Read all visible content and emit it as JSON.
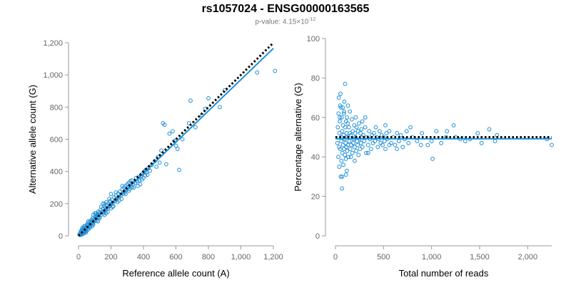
{
  "header": {
    "title": "rs1057024 - ENSG00000163565",
    "pvalue_prefix": "p-value: 4.15×10",
    "pvalue_exp": "-12"
  },
  "colors": {
    "points": "#1f8fd8",
    "fit": "#1f8fd8",
    "reference": "#000000",
    "axis": "#999999"
  },
  "chart_data": [
    {
      "type": "scatter",
      "title": "",
      "xlabel": "Reference allele count (A)",
      "ylabel": "Alternative allele count (G)",
      "xlim": [
        0,
        1200
      ],
      "ylim": [
        0,
        1200
      ],
      "xticks": [
        0,
        200,
        400,
        600,
        800,
        1000,
        1200
      ],
      "xtick_labels": [
        "0",
        "200",
        "400",
        "600",
        "800",
        "1,000",
        "1,200"
      ],
      "yticks": [
        0,
        200,
        400,
        600,
        800,
        1000,
        1200
      ],
      "ytick_labels": [
        "0",
        "200",
        "400",
        "600",
        "800",
        "1,000",
        "1,200"
      ],
      "grid": false,
      "reference_line": {
        "style": "dotted",
        "from": [
          0,
          0
        ],
        "to": [
          1200,
          1200
        ]
      },
      "fit_line": {
        "style": "solid",
        "from": [
          0,
          0
        ],
        "to": [
          1200,
          1165
        ]
      },
      "points": [
        [
          5,
          10
        ],
        [
          10,
          5
        ],
        [
          12,
          20
        ],
        [
          15,
          30
        ],
        [
          18,
          8
        ],
        [
          20,
          15
        ],
        [
          22,
          40
        ],
        [
          25,
          25
        ],
        [
          28,
          12
        ],
        [
          30,
          35
        ],
        [
          32,
          50
        ],
        [
          35,
          20
        ],
        [
          38,
          28
        ],
        [
          40,
          45
        ],
        [
          42,
          60
        ],
        [
          45,
          38
        ],
        [
          48,
          55
        ],
        [
          50,
          30
        ],
        [
          52,
          70
        ],
        [
          55,
          48
        ],
        [
          58,
          62
        ],
        [
          60,
          40
        ],
        [
          62,
          80
        ],
        [
          65,
          55
        ],
        [
          68,
          72
        ],
        [
          70,
          90
        ],
        [
          72,
          60
        ],
        [
          75,
          68
        ],
        [
          78,
          85
        ],
        [
          80,
          100
        ],
        [
          82,
          75
        ],
        [
          85,
          95
        ],
        [
          88,
          110
        ],
        [
          90,
          80
        ],
        [
          92,
          130
        ],
        [
          95,
          88
        ],
        [
          98,
          105
        ],
        [
          100,
          92
        ],
        [
          102,
          120
        ],
        [
          105,
          100
        ],
        [
          108,
          140
        ],
        [
          110,
          115
        ],
        [
          112,
          95
        ],
        [
          115,
          125
        ],
        [
          118,
          135
        ],
        [
          120,
          110
        ],
        [
          122,
          150
        ],
        [
          125,
          128
        ],
        [
          128,
          118
        ],
        [
          130,
          145
        ],
        [
          135,
          160
        ],
        [
          140,
          132
        ],
        [
          145,
          150
        ],
        [
          150,
          170
        ],
        [
          155,
          140
        ],
        [
          158,
          185
        ],
        [
          160,
          155
        ],
        [
          165,
          175
        ],
        [
          170,
          160
        ],
        [
          172,
          210
        ],
        [
          175,
          190
        ],
        [
          180,
          170
        ],
        [
          185,
          200
        ],
        [
          190,
          182
        ],
        [
          195,
          215
        ],
        [
          200,
          195
        ],
        [
          205,
          225
        ],
        [
          210,
          205
        ],
        [
          215,
          185
        ],
        [
          220,
          240
        ],
        [
          225,
          215
        ],
        [
          230,
          250
        ],
        [
          235,
          228
        ],
        [
          240,
          210
        ],
        [
          245,
          262
        ],
        [
          250,
          240
        ],
        [
          255,
          275
        ],
        [
          260,
          250
        ],
        [
          265,
          230
        ],
        [
          270,
          290
        ],
        [
          275,
          262
        ],
        [
          280,
          300
        ],
        [
          285,
          270
        ],
        [
          290,
          310
        ],
        [
          295,
          285
        ],
        [
          300,
          320
        ],
        [
          305,
          300
        ],
        [
          310,
          330
        ],
        [
          315,
          290
        ],
        [
          320,
          340
        ],
        [
          325,
          310
        ],
        [
          330,
          345
        ],
        [
          335,
          320
        ],
        [
          340,
          300
        ],
        [
          350,
          330
        ],
        [
          355,
          360
        ],
        [
          360,
          340
        ],
        [
          365,
          310
        ],
        [
          370,
          365
        ],
        [
          375,
          345
        ],
        [
          380,
          320
        ],
        [
          385,
          370
        ],
        [
          390,
          350
        ],
        [
          395,
          385
        ],
        [
          400,
          360
        ],
        [
          405,
          400
        ],
        [
          410,
          375
        ],
        [
          415,
          410
        ],
        [
          420,
          395
        ],
        [
          425,
          380
        ],
        [
          430,
          420
        ],
        [
          440,
          405
        ],
        [
          450,
          440
        ],
        [
          470,
          465
        ],
        [
          480,
          430
        ],
        [
          490,
          490
        ],
        [
          500,
          455
        ],
        [
          510,
          530
        ],
        [
          520,
          700
        ],
        [
          530,
          690
        ],
        [
          540,
          445
        ],
        [
          560,
          635
        ],
        [
          580,
          650
        ],
        [
          590,
          590
        ],
        [
          600,
          560
        ],
        [
          610,
          540
        ],
        [
          620,
          410
        ],
        [
          640,
          600
        ],
        [
          680,
          700
        ],
        [
          690,
          840
        ],
        [
          720,
          675
        ],
        [
          760,
          750
        ],
        [
          780,
          790
        ],
        [
          800,
          855
        ],
        [
          870,
          800
        ],
        [
          900,
          905
        ],
        [
          1100,
          1015
        ],
        [
          1210,
          1025
        ],
        [
          150,
          200
        ],
        [
          170,
          140
        ],
        [
          190,
          230
        ],
        [
          210,
          180
        ],
        [
          230,
          270
        ],
        [
          250,
          220
        ],
        [
          270,
          310
        ],
        [
          290,
          260
        ],
        [
          310,
          280
        ],
        [
          330,
          300
        ],
        [
          200,
          170
        ],
        [
          160,
          130
        ],
        [
          130,
          110
        ],
        [
          110,
          130
        ],
        [
          90,
          70
        ],
        [
          70,
          50
        ],
        [
          55,
          70
        ],
        [
          40,
          25
        ],
        [
          30,
          15
        ],
        [
          20,
          35
        ],
        [
          15,
          10
        ],
        [
          25,
          50
        ],
        [
          35,
          60
        ],
        [
          45,
          20
        ],
        [
          60,
          90
        ],
        [
          85,
          60
        ],
        [
          100,
          140
        ],
        [
          120,
          90
        ],
        [
          140,
          180
        ],
        [
          160,
          200
        ],
        [
          180,
          150
        ],
        [
          200,
          260
        ]
      ]
    },
    {
      "type": "scatter",
      "title": "",
      "xlabel": "Total number of reads",
      "ylabel": "Percentage alternative (G)",
      "xlim": [
        0,
        2250
      ],
      "ylim": [
        0,
        100
      ],
      "xticks": [
        0,
        500,
        1000,
        1500,
        2000
      ],
      "xtick_labels": [
        "0",
        "500",
        "1,000",
        "1,500",
        "2,000"
      ],
      "yticks": [
        0,
        20,
        40,
        60,
        80,
        100
      ],
      "ytick_labels": [
        "0",
        "20",
        "40",
        "60",
        "80",
        "100"
      ],
      "grid": false,
      "reference_line": {
        "style": "dotted",
        "from": [
          0,
          50
        ],
        "to": [
          2250,
          50
        ]
      },
      "fit_line": {
        "style": "solid",
        "from": [
          0,
          49.2
        ],
        "to": [
          2250,
          49.2
        ]
      },
      "points": [
        [
          20,
          47
        ],
        [
          25,
          55
        ],
        [
          30,
          40
        ],
        [
          32,
          62
        ],
        [
          35,
          70
        ],
        [
          38,
          45
        ],
        [
          40,
          35
        ],
        [
          42,
          52
        ],
        [
          45,
          58
        ],
        [
          48,
          66
        ],
        [
          50,
          44
        ],
        [
          52,
          72
        ],
        [
          55,
          30
        ],
        [
          58,
          50
        ],
        [
          60,
          48
        ],
        [
          62,
          38
        ],
        [
          65,
          60
        ],
        [
          68,
          24
        ],
        [
          70,
          53
        ],
        [
          72,
          42
        ],
        [
          75,
          65
        ],
        [
          78,
          56
        ],
        [
          80,
          46
        ],
        [
          82,
          36
        ],
        [
          85,
          51
        ],
        [
          88,
          62
        ],
        [
          90,
          44
        ],
        [
          92,
          68
        ],
        [
          95,
          49
        ],
        [
          98,
          41
        ],
        [
          100,
          77
        ],
        [
          102,
          55
        ],
        [
          105,
          47
        ],
        [
          108,
          39
        ],
        [
          110,
          58
        ],
        [
          112,
          45
        ],
        [
          115,
          52
        ],
        [
          118,
          33
        ],
        [
          120,
          60
        ],
        [
          122,
          43
        ],
        [
          125,
          50
        ],
        [
          128,
          57
        ],
        [
          130,
          46
        ],
        [
          135,
          40
        ],
        [
          140,
          55
        ],
        [
          145,
          48
        ],
        [
          150,
          52
        ],
        [
          155,
          44
        ],
        [
          160,
          51
        ],
        [
          165,
          46
        ],
        [
          170,
          59
        ],
        [
          175,
          42
        ],
        [
          180,
          53
        ],
        [
          185,
          47
        ],
        [
          190,
          49
        ],
        [
          195,
          56
        ],
        [
          200,
          45
        ],
        [
          205,
          52
        ],
        [
          210,
          50
        ],
        [
          215,
          43
        ],
        [
          220,
          55
        ],
        [
          225,
          48
        ],
        [
          230,
          46
        ],
        [
          235,
          53
        ],
        [
          240,
          41
        ],
        [
          245,
          57
        ],
        [
          250,
          49
        ],
        [
          255,
          44
        ],
        [
          260,
          52
        ],
        [
          265,
          47
        ],
        [
          270,
          54
        ],
        [
          275,
          50
        ],
        [
          280,
          45
        ],
        [
          290,
          51
        ],
        [
          300,
          48
        ],
        [
          310,
          55
        ],
        [
          320,
          42
        ],
        [
          330,
          50
        ],
        [
          340,
          46
        ],
        [
          350,
          53
        ],
        [
          360,
          49
        ],
        [
          370,
          44
        ],
        [
          380,
          51
        ],
        [
          390,
          47
        ],
        [
          400,
          52
        ],
        [
          410,
          48
        ],
        [
          420,
          55
        ],
        [
          430,
          50
        ],
        [
          440,
          45
        ],
        [
          450,
          49
        ],
        [
          460,
          53
        ],
        [
          470,
          47
        ],
        [
          480,
          51
        ],
        [
          490,
          46
        ],
        [
          500,
          50
        ],
        [
          510,
          48
        ],
        [
          520,
          44
        ],
        [
          530,
          52
        ],
        [
          540,
          49
        ],
        [
          560,
          53
        ],
        [
          580,
          47
        ],
        [
          600,
          50
        ],
        [
          620,
          46
        ],
        [
          640,
          52
        ],
        [
          660,
          48
        ],
        [
          680,
          51
        ],
        [
          700,
          45
        ],
        [
          720,
          49
        ],
        [
          740,
          53
        ],
        [
          760,
          47
        ],
        [
          780,
          55
        ],
        [
          800,
          50
        ],
        [
          850,
          48
        ],
        [
          900,
          52
        ],
        [
          960,
          46
        ],
        [
          1000,
          48
        ],
        [
          1010,
          39
        ],
        [
          1050,
          53
        ],
        [
          1100,
          47
        ],
        [
          1160,
          53
        ],
        [
          1230,
          56
        ],
        [
          1250,
          50
        ],
        [
          1300,
          49
        ],
        [
          1350,
          48
        ],
        [
          1400,
          49
        ],
        [
          1480,
          52
        ],
        [
          1520,
          47
        ],
        [
          1600,
          54
        ],
        [
          1660,
          48
        ],
        [
          1680,
          51
        ],
        [
          2200,
          49
        ],
        [
          2250,
          46
        ],
        [
          150,
          63
        ],
        [
          130,
          66
        ],
        [
          210,
          60
        ],
        [
          310,
          60
        ],
        [
          560,
          46
        ],
        [
          640,
          44
        ],
        [
          890,
          46
        ],
        [
          1150,
          50
        ],
        [
          70,
          30
        ],
        [
          110,
          31
        ],
        [
          160,
          40
        ],
        [
          200,
          38
        ],
        [
          90,
          63
        ],
        [
          55,
          65
        ],
        [
          45,
          60
        ],
        [
          280,
          58
        ],
        [
          340,
          42
        ],
        [
          520,
          56
        ]
      ]
    }
  ]
}
